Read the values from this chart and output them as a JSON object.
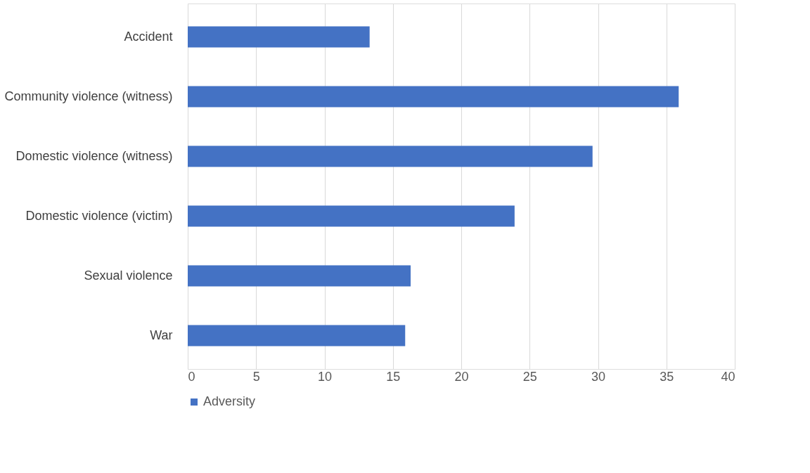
{
  "chart_data": {
    "type": "bar",
    "orientation": "horizontal",
    "categories": [
      "Accident",
      "Community violence (witness)",
      "Domestic violence (witness)",
      "Domestic violence (victim)",
      "Sexual violence",
      "War"
    ],
    "series": [
      {
        "name": "Adversity",
        "color": "#4472c4",
        "values": [
          13.3,
          35.9,
          29.6,
          23.9,
          16.3,
          15.9
        ]
      }
    ],
    "xlim": [
      0,
      40
    ],
    "xticks": [
      0,
      5,
      10,
      15,
      20,
      25,
      30,
      35,
      40
    ],
    "grid": "x",
    "legend": "bottom"
  }
}
